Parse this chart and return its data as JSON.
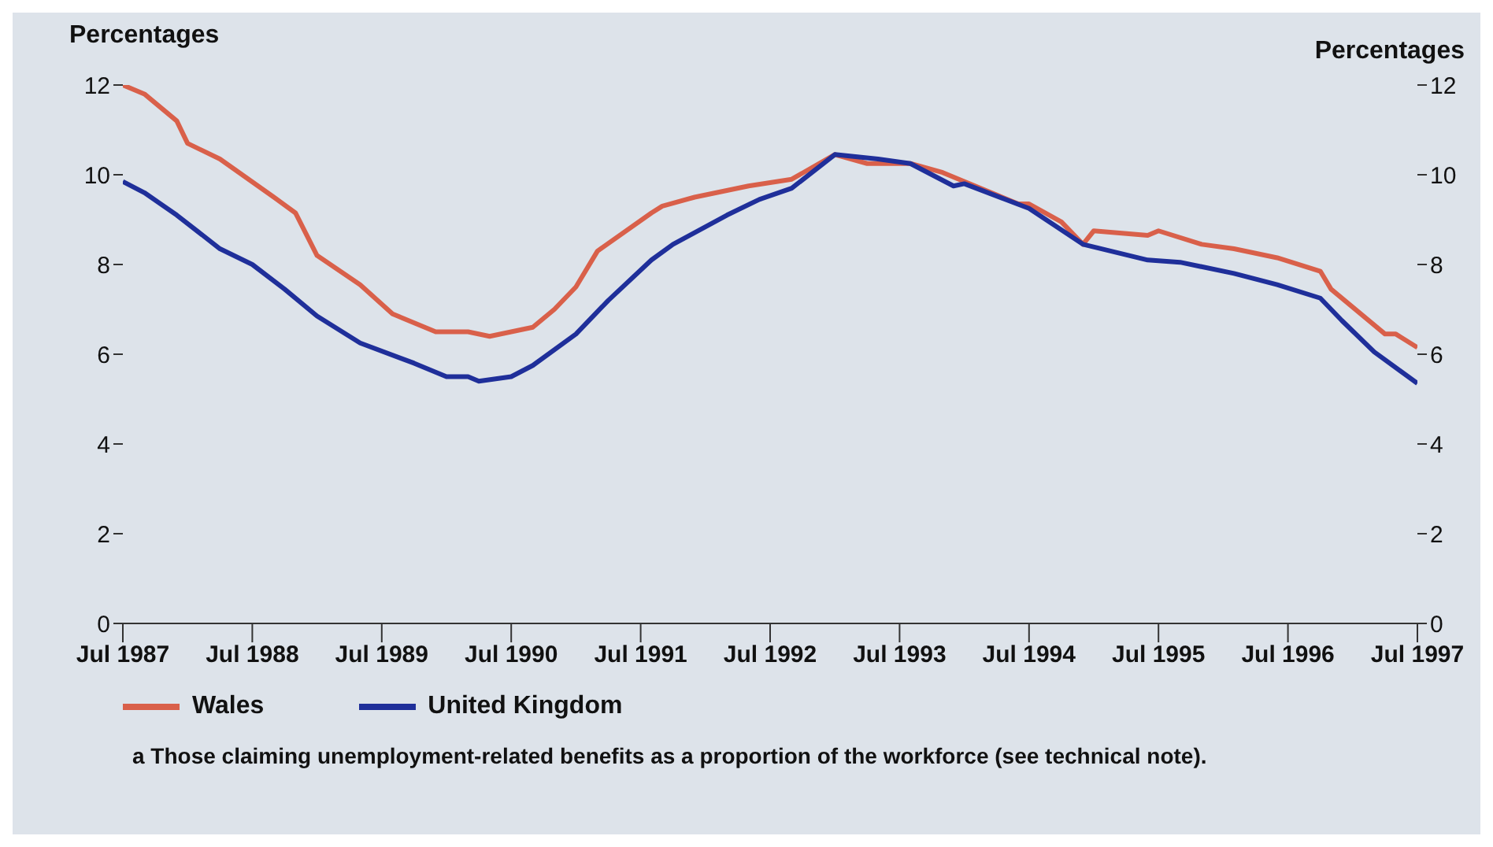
{
  "chart_data": {
    "type": "line",
    "ylabel": "Percentages",
    "y2label": "Percentages",
    "xlim": [
      "1987-07",
      "1997-07"
    ],
    "xticks": [
      {
        "value": "1987-07",
        "label": "Jul 1987"
      },
      {
        "value": "1988-07",
        "label": "Jul 1988"
      },
      {
        "value": "1989-07",
        "label": "Jul 1989"
      },
      {
        "value": "1990-07",
        "label": "Jul 1990"
      },
      {
        "value": "1991-07",
        "label": "Jul 1991"
      },
      {
        "value": "1992-07",
        "label": "Jul 1992"
      },
      {
        "value": "1993-07",
        "label": "Jul 1993"
      },
      {
        "value": "1994-07",
        "label": "Jul 1994"
      },
      {
        "value": "1995-07",
        "label": "Jul 1995"
      },
      {
        "value": "1996-07",
        "label": "Jul 1996"
      },
      {
        "value": "1997-07",
        "label": "Jul 1997"
      }
    ],
    "ylim": [
      0,
      12
    ],
    "yticks": [
      0,
      2,
      4,
      6,
      8,
      10,
      12
    ],
    "y2lim": [
      0,
      12
    ],
    "y2ticks": [
      0,
      2,
      4,
      6,
      8,
      10,
      12
    ],
    "grid": false,
    "legend": "bottom left",
    "line_style": "solid",
    "marker": "none",
    "series": [
      {
        "name": "Wales",
        "color": "#d9604a",
        "x": [
          "1987-07",
          "1987-09",
          "1987-12",
          "1988-01",
          "1988-04",
          "1988-09",
          "1988-11",
          "1989-01",
          "1989-05",
          "1989-08",
          "1989-12",
          "1990-03",
          "1990-05",
          "1990-09",
          "1990-11",
          "1991-01",
          "1991-03",
          "1991-08",
          "1991-09",
          "1991-12",
          "1992-05",
          "1992-09",
          "1993-01",
          "1993-04",
          "1993-08",
          "1993-11",
          "1994-06",
          "1994-07",
          "1994-10",
          "1994-12",
          "1995-01",
          "1995-06",
          "1995-07",
          "1995-11",
          "1996-02",
          "1996-06",
          "1996-10",
          "1996-11",
          "1997-04",
          "1997-05",
          "1997-07"
        ],
        "values": [
          12.0,
          11.8,
          11.2,
          10.7,
          10.35,
          9.5,
          9.15,
          8.2,
          7.55,
          6.9,
          6.5,
          6.5,
          6.4,
          6.6,
          7.0,
          7.5,
          8.3,
          9.15,
          9.3,
          9.5,
          9.75,
          9.9,
          10.45,
          10.25,
          10.25,
          10.05,
          9.35,
          9.35,
          8.95,
          8.45,
          8.75,
          8.65,
          8.75,
          8.45,
          8.35,
          8.15,
          7.85,
          7.45,
          6.45,
          6.45,
          6.15
        ]
      },
      {
        "name": "United Kingdom",
        "color": "#1f2f9a",
        "x": [
          "1987-07",
          "1987-09",
          "1987-12",
          "1988-04",
          "1988-07",
          "1988-10",
          "1989-01",
          "1989-05",
          "1989-10",
          "1990-01",
          "1990-03",
          "1990-04",
          "1990-07",
          "1990-09",
          "1991-01",
          "1991-04",
          "1991-08",
          "1991-10",
          "1992-03",
          "1992-06",
          "1992-09",
          "1993-01",
          "1993-05",
          "1993-08",
          "1993-12",
          "1994-01",
          "1994-07",
          "1994-12",
          "1995-06",
          "1995-09",
          "1996-02",
          "1996-06",
          "1996-10",
          "1996-12",
          "1997-03",
          "1997-07"
        ],
        "values": [
          9.85,
          9.6,
          9.1,
          8.35,
          8.0,
          7.45,
          6.85,
          6.25,
          5.8,
          5.5,
          5.5,
          5.4,
          5.5,
          5.75,
          6.45,
          7.2,
          8.1,
          8.45,
          9.1,
          9.45,
          9.7,
          10.45,
          10.35,
          10.25,
          9.75,
          9.8,
          9.25,
          8.45,
          8.1,
          8.05,
          7.8,
          7.55,
          7.25,
          6.75,
          6.05,
          5.35
        ]
      }
    ],
    "annotations": [
      "a Those claiming unemployment-related benefits as a proportion of the workforce (see technical note)."
    ]
  }
}
